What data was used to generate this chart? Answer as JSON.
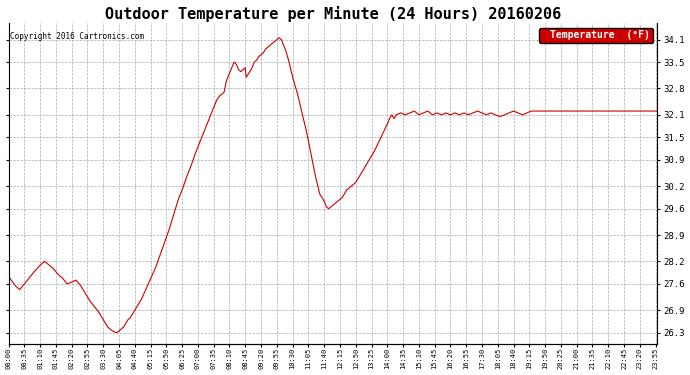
{
  "title": "Outdoor Temperature per Minute (24 Hours) 20160206",
  "copyright_text": "Copyright 2016 Cartronics.com",
  "legend_label": "Temperature  (°F)",
  "legend_bg": "#cc0000",
  "legend_text_color": "#ffffff",
  "line_color": "#cc0000",
  "bg_color": "#ffffff",
  "grid_color": "#aaaaaa",
  "grid_style": "--",
  "title_fontsize": 11,
  "ylabel_right_values": [
    26.3,
    26.9,
    27.6,
    28.2,
    28.9,
    29.6,
    30.2,
    30.9,
    31.5,
    32.1,
    32.8,
    33.5,
    34.1
  ],
  "ylim": [
    26.0,
    34.55
  ],
  "x_labels": [
    "00:00",
    "00:35",
    "01:10",
    "01:45",
    "02:20",
    "02:55",
    "03:30",
    "04:05",
    "04:40",
    "05:15",
    "05:50",
    "06:25",
    "07:00",
    "07:35",
    "08:10",
    "08:45",
    "09:20",
    "09:55",
    "10:30",
    "11:05",
    "11:40",
    "12:15",
    "12:50",
    "13:25",
    "14:00",
    "14:35",
    "15:10",
    "15:45",
    "16:20",
    "16:55",
    "17:30",
    "18:05",
    "18:40",
    "19:15",
    "19:50",
    "20:25",
    "21:00",
    "21:35",
    "22:10",
    "22:45",
    "23:20",
    "23:55"
  ],
  "keypoints": {
    "0": 27.8,
    "15": 27.55,
    "25": 27.45,
    "35": 27.6,
    "55": 27.9,
    "70": 28.1,
    "80": 28.2,
    "90": 28.1,
    "100": 28.0,
    "110": 27.85,
    "120": 27.75,
    "130": 27.6,
    "140": 27.65,
    "150": 27.7,
    "160": 27.55,
    "170": 27.35,
    "180": 27.15,
    "190": 27.0,
    "200": 26.85,
    "210": 26.65,
    "220": 26.45,
    "230": 26.35,
    "240": 26.3,
    "245": 26.35,
    "250": 26.4,
    "255": 26.45,
    "260": 26.55,
    "265": 26.65,
    "270": 26.7,
    "280": 26.9,
    "295": 27.2,
    "310": 27.6,
    "325": 28.0,
    "340": 28.5,
    "355": 29.0,
    "365": 29.4,
    "375": 29.8,
    "385": 30.1,
    "395": 30.45,
    "405": 30.75,
    "415": 31.1,
    "425": 31.4,
    "435": 31.7,
    "445": 32.0,
    "455": 32.3,
    "462": 32.5,
    "468": 32.6,
    "473": 32.65,
    "478": 32.7,
    "483": 33.0,
    "490": 33.2,
    "495": 33.35,
    "500": 33.5,
    "505": 33.45,
    "510": 33.3,
    "515": 33.25,
    "520": 33.3,
    "525": 33.35,
    "527": 33.1,
    "530": 33.15,
    "535": 33.25,
    "540": 33.35,
    "545": 33.5,
    "550": 33.55,
    "555": 33.65,
    "560": 33.7,
    "565": 33.75,
    "570": 33.85,
    "575": 33.9,
    "580": 33.95,
    "585": 34.0,
    "590": 34.05,
    "595": 34.1,
    "600": 34.15,
    "605": 34.1,
    "610": 33.95,
    "615": 33.8,
    "620": 33.6,
    "625": 33.35,
    "630": 33.1,
    "640": 32.7,
    "650": 32.2,
    "660": 31.7,
    "670": 31.1,
    "680": 30.5,
    "690": 30.0,
    "700": 29.8,
    "705": 29.65,
    "710": 29.6,
    "715": 29.65,
    "720": 29.7,
    "725": 29.75,
    "730": 29.8,
    "735": 29.85,
    "740": 29.9,
    "745": 30.0,
    "750": 30.1,
    "755": 30.15,
    "760": 30.2,
    "770": 30.3,
    "780": 30.5,
    "790": 30.7,
    "800": 30.9,
    "810": 31.1,
    "820": 31.35,
    "830": 31.6,
    "840": 31.85,
    "845": 32.0,
    "850": 32.1,
    "855": 32.0,
    "860": 32.1,
    "870": 32.15,
    "880": 32.1,
    "890": 32.15,
    "900": 32.2,
    "910": 32.1,
    "920": 32.15,
    "930": 32.2,
    "940": 32.1,
    "950": 32.15,
    "960": 32.1,
    "970": 32.15,
    "980": 32.1,
    "990": 32.15,
    "1000": 32.1,
    "1010": 32.15,
    "1020": 32.1,
    "1030": 32.15,
    "1040": 32.2,
    "1050": 32.15,
    "1060": 32.1,
    "1070": 32.15,
    "1080": 32.1,
    "1090": 32.05,
    "1100": 32.1,
    "1110": 32.15,
    "1120": 32.2,
    "1130": 32.15,
    "1140": 32.1,
    "1150": 32.15,
    "1159": 32.2
  }
}
